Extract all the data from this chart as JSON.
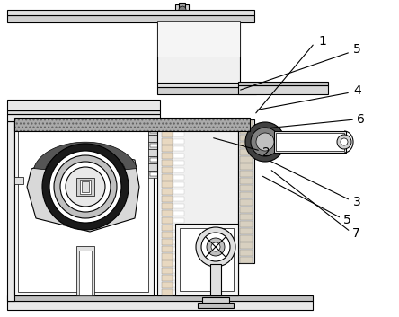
{
  "title": "",
  "bg_color": "#ffffff",
  "line_color": "#000000",
  "gray_light": "#d0d0d0",
  "gray_dark": "#606060",
  "gray_med": "#a0a0a0",
  "label_1": "1",
  "label_2": "2",
  "label_3": "3",
  "label_4": "4",
  "label_5": "5",
  "label_6": "6",
  "label_7": "7",
  "font_size": 10
}
